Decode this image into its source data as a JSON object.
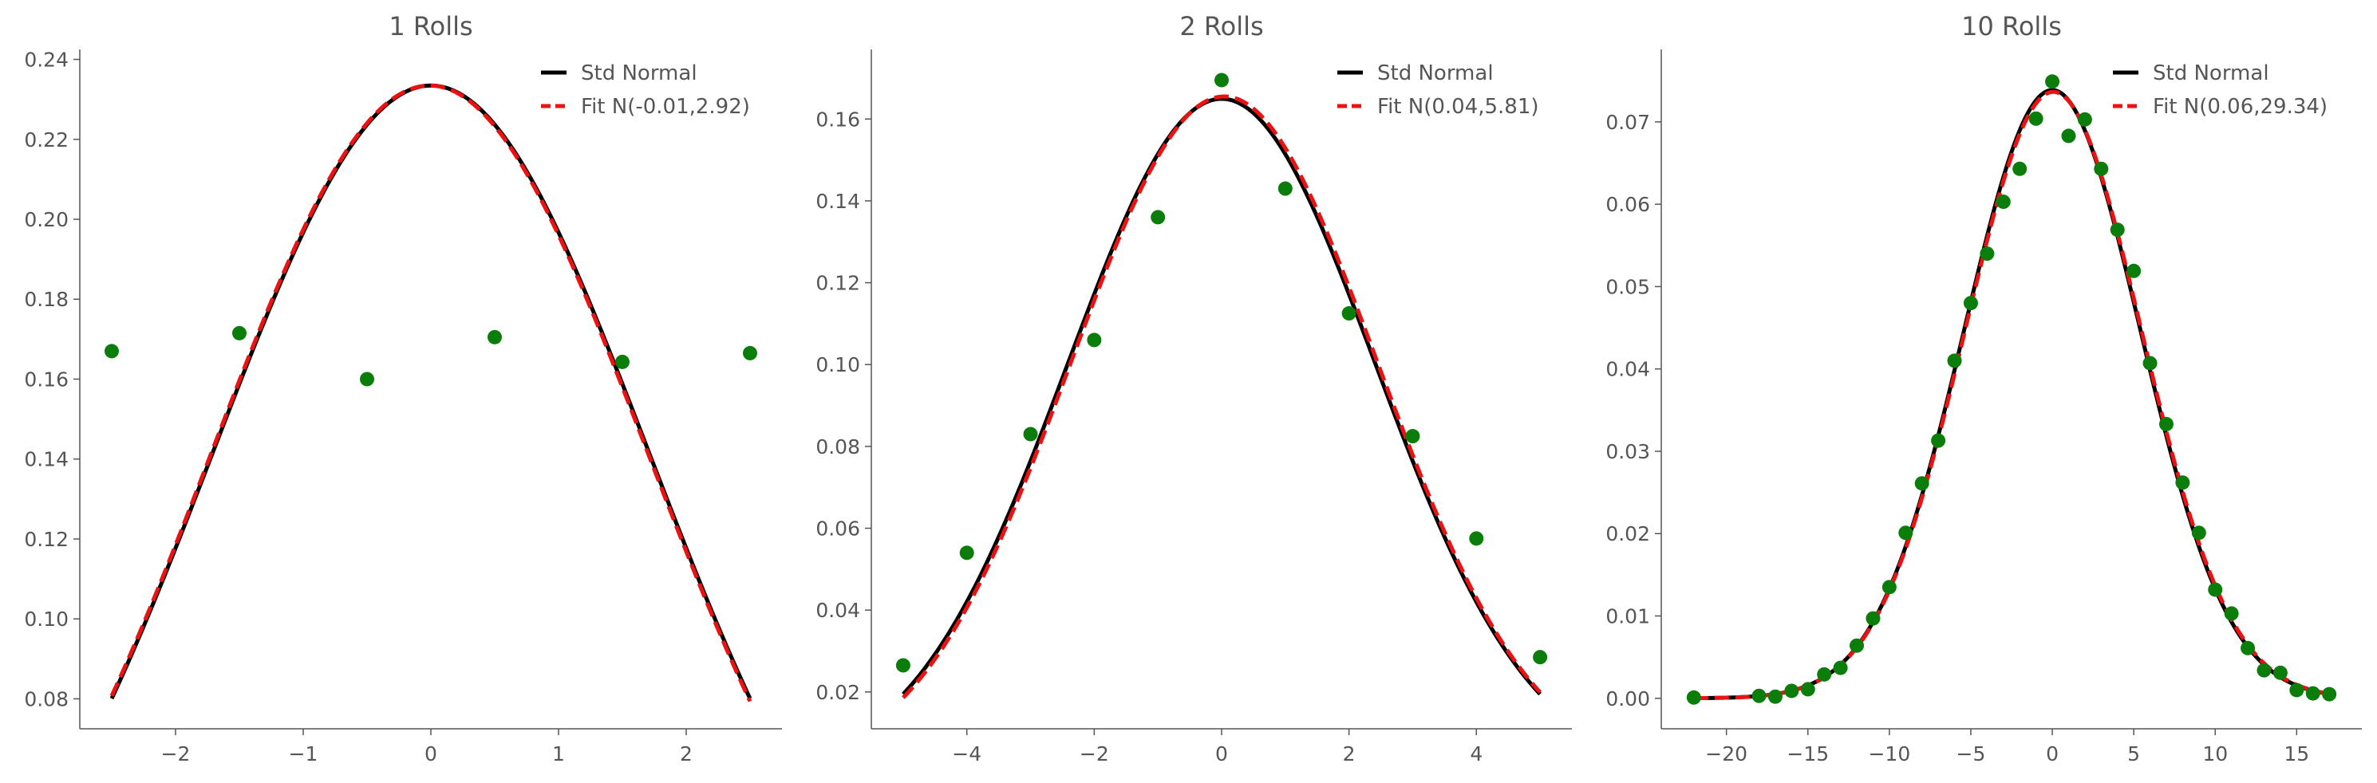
{
  "colors": {
    "std_normal": "#000000",
    "fit": "#ee1111",
    "points": "#0a7d0a",
    "axis": "#555555"
  },
  "chart_data": [
    {
      "type": "scatter",
      "title": "1 Rolls",
      "xlim": [
        -2.75,
        2.75
      ],
      "ylim": [
        0.0725,
        0.2425
      ],
      "xticks": [
        -2,
        -1,
        0,
        1,
        2
      ],
      "xtick_labels": [
        "−2",
        "−1",
        "0",
        "1",
        "2"
      ],
      "yticks": [
        0.08,
        0.1,
        0.12,
        0.14,
        0.16,
        0.18,
        0.2,
        0.22,
        0.24
      ],
      "ytick_labels": [
        "0.08",
        "0.10",
        "0.12",
        "0.14",
        "0.16",
        "0.18",
        "0.20",
        "0.22",
        "0.24"
      ],
      "legend_position": "top-right",
      "series": [
        {
          "name": "Std Normal",
          "kind": "line",
          "style": "solid",
          "mean": 0,
          "variance": 2.92,
          "x_range": [
            -2.5,
            2.5
          ]
        },
        {
          "name": "Fit N(-0.01,2.92)",
          "kind": "line",
          "style": "dashed",
          "mean": -0.01,
          "variance": 2.92,
          "x_range": [
            -2.5,
            2.5
          ]
        },
        {
          "kind": "scatter",
          "x": [
            -2.5,
            -1.5,
            -0.5,
            0.5,
            1.5,
            2.5
          ],
          "y": [
            0.167,
            0.1715,
            0.16,
            0.1705,
            0.1643,
            0.1665
          ]
        }
      ]
    },
    {
      "type": "scatter",
      "title": "2 Rolls",
      "xlim": [
        -5.5,
        5.5
      ],
      "ylim": [
        0.011,
        0.177
      ],
      "xticks": [
        -4,
        -2,
        0,
        2,
        4
      ],
      "xtick_labels": [
        "−4",
        "−2",
        "0",
        "2",
        "4"
      ],
      "yticks": [
        0.02,
        0.04,
        0.06,
        0.08,
        0.1,
        0.12,
        0.14,
        0.16
      ],
      "ytick_labels": [
        "0.02",
        "0.04",
        "0.06",
        "0.08",
        "0.10",
        "0.12",
        "0.14",
        "0.16"
      ],
      "legend_position": "top-right",
      "series": [
        {
          "name": "Std Normal",
          "kind": "line",
          "style": "solid",
          "mean": 0,
          "variance": 5.85,
          "x_range": [
            -5,
            5
          ]
        },
        {
          "name": "Fit N(0.04,5.81)",
          "kind": "line",
          "style": "dashed",
          "mean": 0.04,
          "variance": 5.81,
          "x_range": [
            -5,
            5
          ]
        },
        {
          "kind": "scatter",
          "x": [
            -5,
            -4,
            -3,
            -2,
            -1,
            0,
            1,
            2,
            3,
            4,
            5
          ],
          "y": [
            0.0265,
            0.054,
            0.083,
            0.106,
            0.136,
            0.1695,
            0.143,
            0.1125,
            0.0825,
            0.0575,
            0.0285
          ]
        }
      ]
    },
    {
      "type": "scatter",
      "title": "10 Rolls",
      "xlim": [
        -24,
        19
      ],
      "ylim": [
        -0.0037,
        0.0788
      ],
      "xticks": [
        -20,
        -15,
        -10,
        -5,
        0,
        5,
        10,
        15
      ],
      "xtick_labels": [
        "−20",
        "−15",
        "−10",
        "−5",
        "0",
        "5",
        "10",
        "15"
      ],
      "yticks": [
        0.0,
        0.01,
        0.02,
        0.03,
        0.04,
        0.05,
        0.06,
        0.07
      ],
      "ytick_labels": [
        "0.00",
        "0.01",
        "0.02",
        "0.03",
        "0.04",
        "0.05",
        "0.06",
        "0.07"
      ],
      "legend_position": "top-right",
      "series": [
        {
          "name": "Std Normal",
          "kind": "line",
          "style": "solid",
          "mean": 0,
          "variance": 29.17,
          "x_range": [
            -22,
            17
          ]
        },
        {
          "name": "Fit N(0.06,29.34)",
          "kind": "line",
          "style": "dashed",
          "mean": 0.06,
          "variance": 29.34,
          "x_range": [
            -22,
            17
          ]
        },
        {
          "kind": "scatter",
          "x": [
            -22,
            -18,
            -17,
            -16,
            -15,
            -14,
            -13,
            -12,
            -11,
            -10,
            -9,
            -8,
            -7,
            -6,
            -5,
            -4,
            -3,
            -2,
            -1,
            0,
            1,
            2,
            3,
            4,
            5,
            6,
            7,
            8,
            9,
            10,
            11,
            12,
            13,
            14,
            15,
            16,
            17
          ],
          "y": [
            0.0001,
            0.0003,
            0.0002,
            0.0009,
            0.0011,
            0.0029,
            0.0037,
            0.0064,
            0.0097,
            0.0135,
            0.0201,
            0.0261,
            0.0313,
            0.041,
            0.048,
            0.054,
            0.0603,
            0.0643,
            0.0704,
            0.0749,
            0.0683,
            0.0703,
            0.0643,
            0.0569,
            0.0519,
            0.0407,
            0.0333,
            0.0262,
            0.0201,
            0.0132,
            0.0103,
            0.0061,
            0.0034,
            0.0031,
            0.001,
            0.0006,
            0.0005
          ]
        }
      ]
    }
  ]
}
